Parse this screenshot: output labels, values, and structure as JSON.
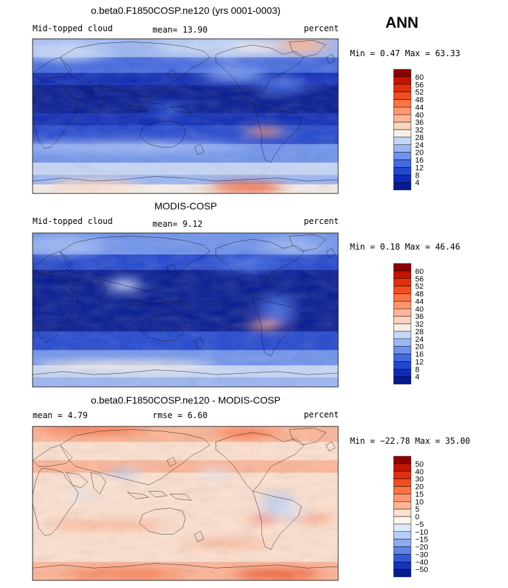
{
  "season": "ANN",
  "panels": [
    {
      "id": "model",
      "title": "o.beta0.F1850COSP.ne120 (yrs 0001-0003)",
      "left_label": "Mid-topped cloud",
      "stat_text": "mean=   13.90",
      "units": "percent",
      "minmax_text": "Min =   0.47 Max =  63.33",
      "scale": "abs"
    },
    {
      "id": "obs",
      "title": "MODIS-COSP",
      "left_label": "Mid-topped cloud",
      "stat_text": "mean=    9.12",
      "units": "percent",
      "minmax_text": "Min =   0.18 Max =  46.46",
      "scale": "abs"
    },
    {
      "id": "diff",
      "title": "o.beta0.F1850COSP.ne120 - MODIS-COSP",
      "left_label": "mean =    4.79",
      "stat_text": "rmse =    6.60",
      "units": "percent",
      "minmax_text": "Min = −22.78 Max =  35.00",
      "scale": "diff"
    }
  ],
  "abs_levels": [
    "60",
    "56",
    "52",
    "48",
    "44",
    "40",
    "36",
    "32",
    "28",
    "24",
    "20",
    "16",
    "12",
    "8",
    "4"
  ],
  "abs_colors": [
    "#8e0000",
    "#c21503",
    "#e0300e",
    "#f04e22",
    "#fa7446",
    "#fd9570",
    "#fdb597",
    "#fdd4c0",
    "#f6eee8",
    "#c5d6f6",
    "#9bb6f4",
    "#6e92ec",
    "#4269e0",
    "#2347cf",
    "#0f2bb6",
    "#061a92"
  ],
  "diff_levels": [
    "50",
    "40",
    "30",
    "20",
    "15",
    "10",
    "5",
    "0",
    "−5",
    "−10",
    "−15",
    "−20",
    "−30",
    "−40",
    "−50"
  ],
  "diff_colors": [
    "#8e0000",
    "#c21503",
    "#e0300e",
    "#f04e22",
    "#fa7446",
    "#fd9570",
    "#fdb597",
    "#fde0cf",
    "#fff4ec",
    "#dde8fa",
    "#b6ccf6",
    "#8eaaf0",
    "#5f83e6",
    "#3459d6",
    "#1535bd",
    "#061a92"
  ],
  "chart_data": {
    "type": "heatmap",
    "variable": "Mid-topped cloud",
    "units": "percent",
    "season": "ANN",
    "series": [
      {
        "name": "o.beta0.F1850COSP.ne120 (yrs 0001-0003)",
        "mean": 13.9,
        "min": 0.47,
        "max": 63.33
      },
      {
        "name": "MODIS-COSP",
        "mean": 9.12,
        "min": 0.18,
        "max": 46.46
      },
      {
        "name": "o.beta0.F1850COSP.ne120 - MODIS-COSP",
        "mean": 4.79,
        "rmse": 6.6,
        "min": -22.78,
        "max": 35.0
      }
    ],
    "contour_levels_abs": [
      4,
      8,
      12,
      16,
      20,
      24,
      28,
      32,
      36,
      40,
      44,
      48,
      52,
      56,
      60
    ],
    "contour_levels_diff": [
      -50,
      -40,
      -30,
      -20,
      -15,
      -10,
      -5,
      0,
      5,
      10,
      15,
      20,
      30,
      40,
      50
    ],
    "x_range_lon": [
      0,
      360
    ],
    "y_range_lat": [
      -90,
      90
    ]
  }
}
